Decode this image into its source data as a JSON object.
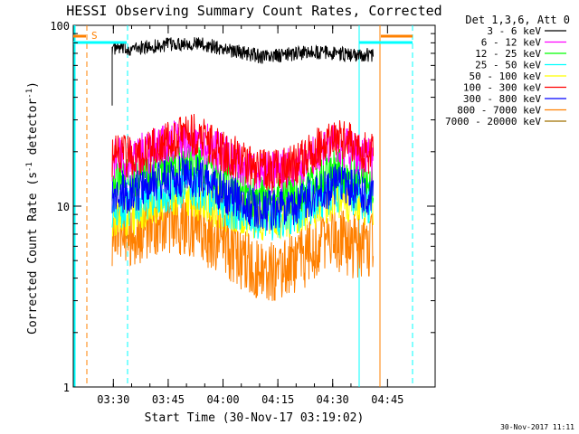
{
  "chart_data": {
    "type": "line",
    "title": "HESSI Observing Summary Count Rates, Corrected",
    "xlabel": "Start Time (30-Nov-17 03:19:02)",
    "ylabel": "Corrected Count Rate (s",
    "ylabel_sup1": "-1",
    "ylabel_mid": " detector",
    "ylabel_sup2": "-1",
    "ylabel_end": ")",
    "yscale": "log",
    "ylim": [
      1,
      100
    ],
    "xlim": [
      "03:19:02",
      "04:58:00"
    ],
    "x_ticks": [
      "03:30",
      "03:45",
      "04:00",
      "04:15",
      "04:30",
      "04:45"
    ],
    "y_ticks": [
      "1",
      "10",
      "100"
    ],
    "legend_title": "Det 1,3,6, Att 0",
    "legend_position": "right",
    "flag_label": "S",
    "timestamp": "30-Nov-2017 11:11",
    "series": [
      {
        "name": "3 - 6 keV",
        "color": "#000000",
        "values": [
          [
            0,
            75
          ],
          [
            5,
            74
          ],
          [
            10,
            76
          ],
          [
            15,
            78
          ],
          [
            20,
            80
          ],
          [
            25,
            78
          ],
          [
            30,
            74
          ],
          [
            35,
            71
          ],
          [
            40,
            67
          ],
          [
            45,
            68
          ],
          [
            50,
            70
          ],
          [
            55,
            71
          ],
          [
            60,
            70
          ],
          [
            65,
            68
          ],
          [
            70,
            69
          ]
        ]
      },
      {
        "name": "6 - 12 keV",
        "color": "#ff00ff",
        "values": [
          [
            0,
            18
          ],
          [
            5,
            18.5
          ],
          [
            10,
            20
          ],
          [
            15,
            22
          ],
          [
            20,
            24
          ],
          [
            25,
            22
          ],
          [
            30,
            19
          ],
          [
            35,
            17
          ],
          [
            40,
            15.5
          ],
          [
            45,
            15.5
          ],
          [
            50,
            17
          ],
          [
            55,
            20
          ],
          [
            60,
            22
          ],
          [
            65,
            20
          ],
          [
            70,
            18
          ]
        ]
      },
      {
        "name": "12 - 25 keV",
        "color": "#00ff00",
        "values": [
          [
            0,
            14
          ],
          [
            5,
            14
          ],
          [
            10,
            15
          ],
          [
            15,
            17
          ],
          [
            20,
            19
          ],
          [
            25,
            17
          ],
          [
            30,
            14
          ],
          [
            35,
            12
          ],
          [
            40,
            11
          ],
          [
            45,
            11
          ],
          [
            50,
            12
          ],
          [
            55,
            14
          ],
          [
            60,
            16
          ],
          [
            65,
            15
          ],
          [
            70,
            13
          ]
        ]
      },
      {
        "name": "25 - 50 keV",
        "color": "#00ffff",
        "values": [
          [
            0,
            10
          ],
          [
            5,
            10
          ],
          [
            10,
            11
          ],
          [
            15,
            12
          ],
          [
            20,
            13
          ],
          [
            25,
            12
          ],
          [
            30,
            10
          ],
          [
            35,
            9
          ],
          [
            40,
            8.5
          ],
          [
            45,
            8.5
          ],
          [
            50,
            9.5
          ],
          [
            55,
            11
          ],
          [
            60,
            12
          ],
          [
            65,
            11.5
          ],
          [
            70,
            10
          ]
        ]
      },
      {
        "name": "50 - 100 keV",
        "color": "#ffff00",
        "values": [
          [
            0,
            9
          ],
          [
            5,
            9
          ],
          [
            10,
            10
          ],
          [
            15,
            11
          ],
          [
            20,
            11.5
          ],
          [
            25,
            10.5
          ],
          [
            30,
            9.5
          ],
          [
            35,
            9
          ],
          [
            40,
            8.5
          ],
          [
            45,
            8.5
          ],
          [
            50,
            9
          ],
          [
            55,
            10
          ],
          [
            60,
            11
          ],
          [
            65,
            10.5
          ],
          [
            70,
            10
          ]
        ]
      },
      {
        "name": "100 - 300 keV",
        "color": "#ff0000",
        "values": [
          [
            0,
            19
          ],
          [
            5,
            19
          ],
          [
            10,
            20
          ],
          [
            15,
            23
          ],
          [
            20,
            26
          ],
          [
            25,
            23
          ],
          [
            30,
            20
          ],
          [
            35,
            18
          ],
          [
            40,
            16
          ],
          [
            45,
            16
          ],
          [
            50,
            17
          ],
          [
            55,
            21
          ],
          [
            60,
            24
          ],
          [
            65,
            22
          ],
          [
            70,
            19
          ]
        ]
      },
      {
        "name": "300 - 800 keV",
        "color": "#0000ff",
        "values": [
          [
            0,
            12
          ],
          [
            5,
            12
          ],
          [
            10,
            13
          ],
          [
            15,
            14
          ],
          [
            20,
            15
          ],
          [
            25,
            14
          ],
          [
            30,
            12
          ],
          [
            35,
            10.5
          ],
          [
            40,
            9.5
          ],
          [
            45,
            9.5
          ],
          [
            50,
            10.5
          ],
          [
            55,
            12
          ],
          [
            60,
            13
          ],
          [
            65,
            12.5
          ],
          [
            70,
            11
          ]
        ]
      },
      {
        "name": "800 - 7000 keV",
        "color": "#ff8000",
        "values": [
          [
            0,
            7
          ],
          [
            5,
            7
          ],
          [
            10,
            7.5
          ],
          [
            15,
            8
          ],
          [
            20,
            8
          ],
          [
            25,
            7
          ],
          [
            30,
            6
          ],
          [
            35,
            5
          ],
          [
            40,
            4.5
          ],
          [
            45,
            4.5
          ],
          [
            50,
            5
          ],
          [
            55,
            6
          ],
          [
            60,
            6.5
          ],
          [
            65,
            6
          ],
          [
            70,
            6
          ]
        ]
      },
      {
        "name": "7000 - 20000 keV",
        "color": "#a07000",
        "values": []
      }
    ]
  }
}
